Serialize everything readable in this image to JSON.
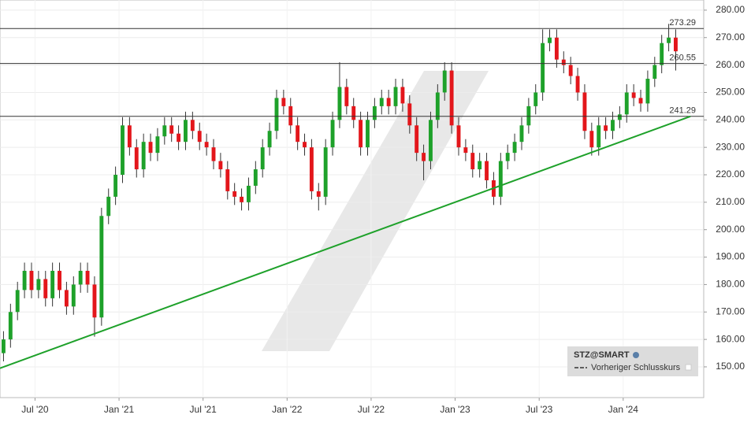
{
  "chart_data": {
    "type": "candlestick",
    "legend": {
      "title": "STZ@SMART",
      "entry": "Vorheriger Schlusskurs"
    },
    "up_color": "#1ea12a",
    "down_color": "#e3161b",
    "open": [
      155,
      160,
      170,
      178,
      185,
      178,
      182,
      175,
      185,
      178,
      172,
      180,
      185,
      180,
      168,
      205,
      212,
      220,
      238,
      230,
      222,
      232,
      228,
      234,
      238,
      235,
      232,
      240,
      236,
      232,
      230,
      225,
      222,
      214,
      212,
      210,
      216,
      222,
      230,
      236,
      248,
      245,
      238,
      232,
      230,
      214,
      212,
      230,
      240,
      252,
      245,
      240,
      230,
      240,
      245,
      248,
      245,
      252,
      246,
      238,
      228,
      225,
      240,
      250,
      258,
      238,
      230,
      228,
      222,
      225,
      218,
      212,
      225,
      228,
      232,
      238,
      245,
      250,
      268,
      270,
      262,
      260,
      256,
      250,
      236,
      230,
      238,
      236,
      240,
      242,
      250,
      248,
      246,
      255,
      260,
      268,
      270
    ],
    "high": [
      163,
      173,
      181,
      188,
      188,
      185,
      185,
      188,
      188,
      181,
      183,
      188,
      188,
      183,
      208,
      215,
      223,
      241,
      241,
      233,
      235,
      235,
      237,
      241,
      241,
      238,
      243,
      243,
      239,
      235,
      233,
      228,
      225,
      217,
      215,
      219,
      225,
      233,
      239,
      251,
      251,
      248,
      241,
      235,
      233,
      217,
      233,
      243,
      261,
      255,
      248,
      243,
      243,
      248,
      251,
      251,
      255,
      255,
      249,
      241,
      231,
      243,
      253,
      261,
      261,
      241,
      233,
      231,
      228,
      228,
      221,
      228,
      231,
      235,
      241,
      248,
      253,
      273,
      273,
      273,
      265,
      263,
      259,
      253,
      239,
      241,
      241,
      243,
      245,
      253,
      253,
      251,
      258,
      263,
      271,
      275,
      273
    ],
    "low": [
      152,
      157,
      167,
      175,
      175,
      175,
      172,
      172,
      175,
      169,
      169,
      177,
      177,
      161,
      165,
      202,
      209,
      217,
      227,
      219,
      219,
      225,
      225,
      231,
      232,
      229,
      229,
      233,
      229,
      227,
      222,
      219,
      211,
      209,
      207,
      207,
      213,
      219,
      227,
      233,
      242,
      235,
      229,
      227,
      211,
      207,
      209,
      227,
      237,
      242,
      237,
      227,
      227,
      237,
      242,
      242,
      242,
      243,
      235,
      225,
      218,
      222,
      237,
      247,
      235,
      227,
      225,
      219,
      219,
      215,
      209,
      209,
      222,
      225,
      229,
      235,
      242,
      247,
      265,
      259,
      257,
      253,
      247,
      233,
      227,
      227,
      233,
      233,
      237,
      239,
      245,
      243,
      243,
      252,
      257,
      265,
      258
    ],
    "close": [
      160,
      170,
      178,
      185,
      178,
      182,
      175,
      185,
      178,
      172,
      180,
      185,
      180,
      168,
      205,
      212,
      220,
      238,
      230,
      222,
      232,
      228,
      234,
      238,
      235,
      232,
      240,
      236,
      232,
      230,
      225,
      222,
      214,
      212,
      210,
      216,
      222,
      230,
      236,
      248,
      245,
      238,
      232,
      230,
      214,
      212,
      230,
      240,
      252,
      245,
      240,
      230,
      240,
      245,
      248,
      245,
      252,
      246,
      238,
      228,
      225,
      240,
      250,
      258,
      238,
      230,
      228,
      222,
      225,
      218,
      212,
      225,
      228,
      232,
      238,
      245,
      250,
      268,
      270,
      262,
      260,
      256,
      250,
      236,
      230,
      238,
      236,
      240,
      242,
      250,
      248,
      246,
      255,
      260,
      268,
      270,
      265
    ],
    "levels": [
      273.29,
      260.55,
      241.29
    ],
    "trendline": {
      "color": "#1ea12a",
      "x": [
        0,
        98.6
      ],
      "values": [
        149.5,
        241.3
      ]
    },
    "xlim": [
      0,
      100.5
    ],
    "xticks": [
      {
        "value": 5,
        "label": "Jul '20"
      },
      {
        "value": 17,
        "label": "Jan '21"
      },
      {
        "value": 29,
        "label": "Jul '21"
      },
      {
        "value": 41,
        "label": "Jan '22"
      },
      {
        "value": 53,
        "label": "Jul '22"
      },
      {
        "value": 65,
        "label": "Jan '23"
      },
      {
        "value": 77,
        "label": "Jul '23"
      },
      {
        "value": 89,
        "label": "Jan '24"
      }
    ],
    "ylim": [
      138.8,
      283.7
    ],
    "yticks": [
      {
        "value": 150,
        "label": "150.00"
      },
      {
        "value": 160,
        "label": "160.00"
      },
      {
        "value": 170,
        "label": "170.00"
      },
      {
        "value": 180,
        "label": "180.00"
      },
      {
        "value": 190,
        "label": "190.00"
      },
      {
        "value": 200,
        "label": "200.00"
      },
      {
        "value": 210,
        "label": "210.00"
      },
      {
        "value": 220,
        "label": "220.00"
      },
      {
        "value": 230,
        "label": "230.00"
      },
      {
        "value": 240,
        "label": "240.00"
      },
      {
        "value": 250,
        "label": "250.00"
      },
      {
        "value": 260,
        "label": "260.00"
      },
      {
        "value": 270,
        "label": "270.00"
      },
      {
        "value": 280,
        "label": "280.00"
      }
    ],
    "grid": true
  }
}
